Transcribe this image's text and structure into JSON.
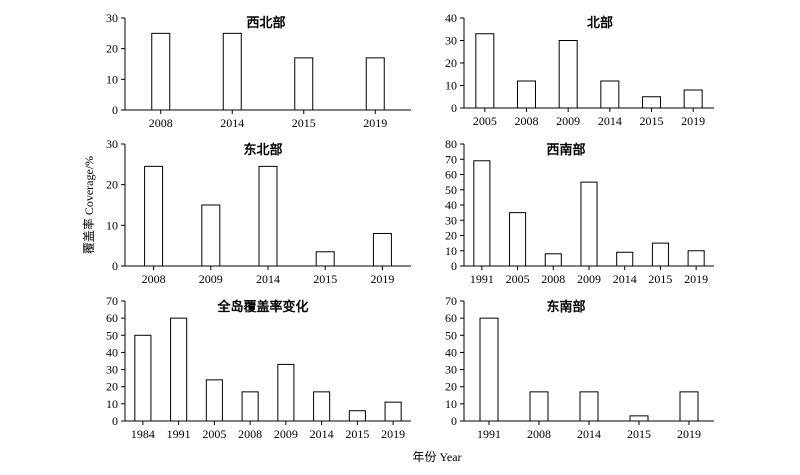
{
  "y_axis_title": "覆盖率 Coverage/%",
  "x_axis_title": "年份 Year",
  "chart_data": [
    {
      "type": "bar",
      "title": "西北部",
      "categories": [
        "2008",
        "2014",
        "2015",
        "2019"
      ],
      "values": [
        25,
        25,
        17,
        17
      ],
      "ylim": [
        0,
        30
      ],
      "yticks": [
        0,
        10,
        20,
        30
      ]
    },
    {
      "type": "bar",
      "title": "北部",
      "categories": [
        "2005",
        "2008",
        "2009",
        "2014",
        "2015",
        "2019"
      ],
      "values": [
        33,
        12,
        30,
        12,
        5,
        8
      ],
      "ylim": [
        0,
        40
      ],
      "yticks": [
        0,
        10,
        20,
        30,
        40
      ]
    },
    {
      "type": "bar",
      "title": "东北部",
      "categories": [
        "2008",
        "2009",
        "2014",
        "2015",
        "2019"
      ],
      "values": [
        24.5,
        15,
        24.5,
        3.5,
        8
      ],
      "ylim": [
        0,
        30
      ],
      "yticks": [
        0,
        10,
        20,
        30
      ]
    },
    {
      "type": "bar",
      "title": "西南部",
      "categories": [
        "1991",
        "2005",
        "2008",
        "2009",
        "2014",
        "2015",
        "2019"
      ],
      "values": [
        69,
        35,
        8,
        55,
        9,
        15,
        10
      ],
      "ylim": [
        0,
        80
      ],
      "yticks": [
        0,
        10,
        20,
        30,
        40,
        50,
        60,
        70,
        80
      ]
    },
    {
      "type": "bar",
      "title": "全岛覆盖率变化",
      "categories": [
        "1984",
        "1991",
        "2005",
        "2008",
        "2009",
        "2014",
        "2015",
        "2019"
      ],
      "values": [
        50,
        60,
        24,
        17,
        33,
        17,
        6,
        11
      ],
      "ylim": [
        0,
        70
      ],
      "yticks": [
        0,
        10,
        20,
        30,
        40,
        50,
        60,
        70
      ]
    },
    {
      "type": "bar",
      "title": "东南部",
      "categories": [
        "1991",
        "2008",
        "2014",
        "2015",
        "2019"
      ],
      "values": [
        60,
        17,
        17,
        3,
        17
      ],
      "ylim": [
        0,
        70
      ],
      "yticks": [
        0,
        10,
        20,
        30,
        40,
        50,
        60,
        70
      ]
    }
  ]
}
